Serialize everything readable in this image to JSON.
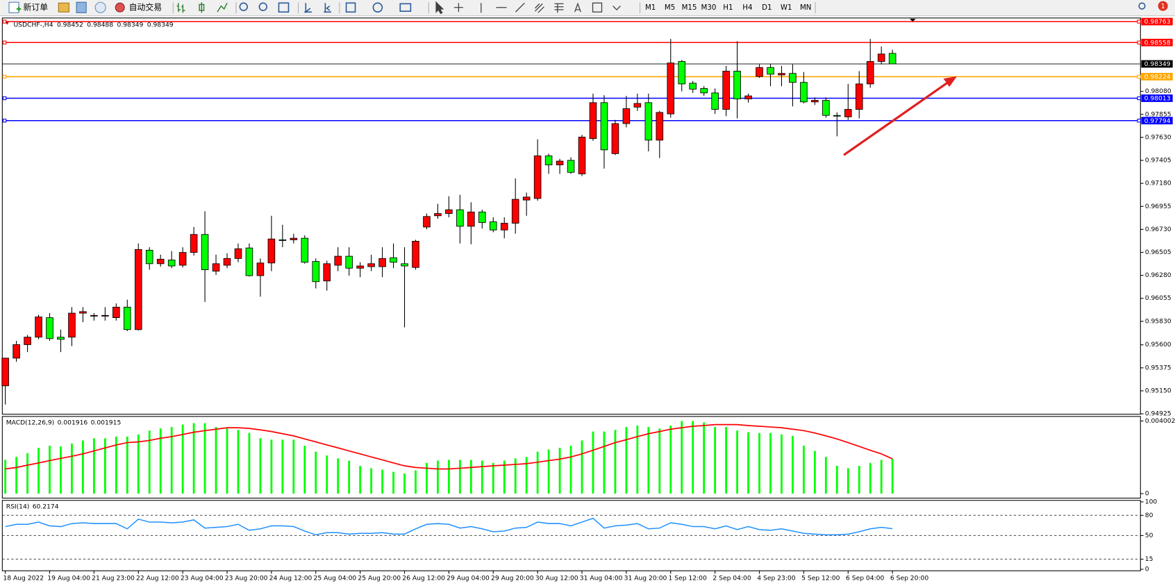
{
  "toolbar": {
    "new_order": "新订单",
    "auto_trading": "自动交易",
    "timeframes": [
      "M1",
      "M5",
      "M15",
      "M30",
      "H1",
      "H4",
      "D1",
      "W1",
      "MN"
    ],
    "notification_count": 1
  },
  "chart_data": [
    {
      "type": "candlestick",
      "symbol": "USDCHF-,H4",
      "categories": [
        "18 Aug 2022",
        null,
        null,
        null,
        "19 Aug 04:00",
        null,
        null,
        null,
        "21 Aug 23:00",
        null,
        null,
        null,
        "22 Aug 12:00",
        null,
        null,
        null,
        "23 Aug 04:00",
        null,
        null,
        null,
        "23 Aug 20:00",
        null,
        null,
        null,
        "24 Aug 12:00",
        null,
        null,
        null,
        "25 Aug 04:00",
        null,
        null,
        null,
        "25 Aug 20:00",
        null,
        null,
        null,
        "26 Aug 12:00",
        null,
        null,
        null,
        "29 Aug 04:00",
        null,
        null,
        null,
        "29 Aug 20:00",
        null,
        null,
        null,
        "30 Aug 12:00",
        null,
        null,
        null,
        "31 Aug 04:00",
        null,
        null,
        null,
        "31 Aug 20:00",
        null,
        null,
        null,
        "1 Sep 12:00",
        null,
        null,
        null,
        "2 Sep 04:00",
        null,
        null,
        null,
        "4 Sep 23:00",
        null,
        null,
        null,
        "5 Sep 12:00",
        null,
        null,
        null,
        "6 Sep 04:00",
        null,
        null,
        null,
        "6 Sep 20:00"
      ],
      "open": [
        0.95199,
        0.9547,
        0.95602,
        0.95675,
        0.95866,
        0.95675,
        0.95675,
        0.9591,
        0.95881,
        0.95881,
        0.95866,
        0.95969,
        0.95749,
        0.96526,
        0.96394,
        0.9643,
        0.96379,
        0.96504,
        0.9668,
        0.96321,
        0.96379,
        0.96445,
        0.96548,
        0.96277,
        0.96401,
        0.96628,
        0.96628,
        0.96643,
        0.96416,
        0.96225,
        0.96379,
        0.96467,
        0.9635,
        0.96365,
        0.96365,
        0.96452,
        0.96394,
        0.96357,
        0.96753,
        0.96863,
        0.96885,
        0.96922,
        0.9676,
        0.969,
        0.96804,
        0.96724,
        0.9679,
        0.97017,
        0.97032,
        0.97449,
        0.97361,
        0.97405,
        0.97273,
        0.97618,
        0.9797,
        0.97471,
        0.97765,
        0.97926,
        0.9797,
        0.97603,
        0.9786,
        0.98373,
        0.9816,
        0.98109,
        0.98065,
        0.97904,
        0.98278,
        0.98006,
        0.98226,
        0.98314,
        0.98241,
        0.98256,
        0.98168,
        0.97977,
        0.97992,
        0.97845,
        0.97831,
        0.97904,
        0.98153,
        0.98373,
        0.98452
      ],
      "high": [
        0.9547,
        0.95639,
        0.95697,
        0.95895,
        0.9591,
        0.95749,
        0.95969,
        0.95969,
        0.9591,
        0.95969,
        0.96005,
        0.96042,
        0.96592,
        0.96555,
        0.96482,
        0.96518,
        0.96555,
        0.96753,
        0.96907,
        0.96482,
        0.96496,
        0.96592,
        0.96592,
        0.96445,
        0.96863,
        0.96775,
        0.96687,
        0.96672,
        0.96445,
        0.96423,
        0.96555,
        0.96555,
        0.96408,
        0.96482,
        0.96555,
        0.96592,
        0.96555,
        0.96628,
        0.96885,
        0.9698,
        0.97054,
        0.97068,
        0.96995,
        0.96922,
        0.96848,
        0.96848,
        0.97229,
        0.9709,
        0.97611,
        0.97471,
        0.9742,
        0.97435,
        0.97655,
        0.98058,
        0.98043,
        0.97801,
        0.98036,
        0.98058,
        0.98058,
        0.97889,
        0.98593,
        0.98388,
        0.98182,
        0.98131,
        0.98109,
        0.98329,
        0.98571,
        0.98058,
        0.98344,
        0.98351,
        0.98329,
        0.98344,
        0.9827,
        0.98021,
        0.98021,
        0.97874,
        0.98153,
        0.98278,
        0.98593,
        0.9852,
        0.98488
      ],
      "low": [
        0.95016,
        0.95434,
        0.95529,
        0.95654,
        0.95639,
        0.95529,
        0.95588,
        0.95822,
        0.95837,
        0.95837,
        0.95837,
        0.95734,
        0.95741,
        0.96335,
        0.96365,
        0.9635,
        0.96357,
        0.96474,
        0.9602,
        0.96284,
        0.9635,
        0.96408,
        0.96269,
        0.96071,
        0.96321,
        0.96555,
        0.96592,
        0.96394,
        0.96152,
        0.9613,
        0.96321,
        0.96277,
        0.96262,
        0.96321,
        0.96262,
        0.9635,
        0.95771,
        0.96335,
        0.96731,
        0.96834,
        0.96848,
        0.96592,
        0.96584,
        0.96738,
        0.96702,
        0.96643,
        0.96687,
        0.96863,
        0.9701,
        0.97273,
        0.97273,
        0.97273,
        0.97251,
        0.97596,
        0.97325,
        0.97457,
        0.97728,
        0.97889,
        0.97493,
        0.97427,
        0.97823,
        0.9808,
        0.98065,
        0.98036,
        0.9786,
        0.97838,
        0.97816,
        0.9797,
        0.98212,
        0.98131,
        0.98131,
        0.97933,
        0.97962,
        0.97948,
        0.97823,
        0.9764,
        0.97801,
        0.97816,
        0.98116,
        0.98344,
        0.98349
      ],
      "close": [
        0.9547,
        0.95602,
        0.95675,
        0.95873,
        0.95661,
        0.95654,
        0.9591,
        0.95925,
        0.95888,
        0.95888,
        0.95969,
        0.95749,
        0.96533,
        0.96394,
        0.96438,
        0.96372,
        0.96504,
        0.9668,
        0.96335,
        0.96394,
        0.96445,
        0.9654,
        0.96277,
        0.96401,
        0.96636,
        0.96621,
        0.96643,
        0.96408,
        0.96218,
        0.96394,
        0.96467,
        0.9635,
        0.96372,
        0.96394,
        0.96445,
        0.96408,
        0.96372,
        0.96614,
        0.96856,
        0.96885,
        0.96922,
        0.9676,
        0.969,
        0.96797,
        0.96724,
        0.9679,
        0.97024,
        0.97046,
        0.97449,
        0.97361,
        0.97398,
        0.97288,
        0.97633,
        0.9797,
        0.97508,
        0.97765,
        0.97911,
        0.97962,
        0.97603,
        0.97874,
        0.98358,
        0.98153,
        0.98102,
        0.98065,
        0.97904,
        0.98278,
        0.98006,
        0.98036,
        0.98314,
        0.98248,
        0.98256,
        0.98168,
        0.97977,
        0.97992,
        0.97845,
        0.97838,
        0.97904,
        0.98153,
        0.98373,
        0.98446,
        0.98349
      ],
      "up_color": "#ff0000",
      "down_color": "#00ff00",
      "ylim": [
        0.94921,
        0.98791
      ],
      "yticks": [
        {
          "value": 0.9808,
          "label": "0.98080"
        },
        0.97855,
        {
          "value": 0.9763,
          "label": "0.97630"
        },
        0.97405,
        {
          "value": 0.9718,
          "label": "0.97180"
        },
        0.96955,
        {
          "value": 0.9673,
          "label": "0.96730"
        },
        0.96505,
        {
          "value": 0.9628,
          "label": "0.96280"
        },
        0.96055,
        {
          "value": 0.9583,
          "label": "0.95830"
        },
        {
          "value": 0.956,
          "label": "0.95600"
        },
        0.95375,
        {
          "value": 0.9515,
          "label": "0.95150"
        },
        0.94925
      ],
      "levels": [
        {
          "value": 0.98763,
          "color": "#ff0000"
        },
        {
          "value": 0.98558,
          "color": "#ff0000"
        },
        {
          "value": 0.98224,
          "color": "#ffa500"
        },
        {
          "value": 0.98013,
          "color": "#0000ff"
        },
        {
          "value": 0.97794,
          "color": "#0000ff"
        }
      ]
    },
    {
      "type": "macd",
      "title": "MACD(12,26,9)",
      "ylim": [
        0,
        0.004002
      ],
      "yticks": [
        0.004002,
        0
      ],
      "series": [
        {
          "color": "#00ff00",
          "values": [
            0.00186,
            0.00202,
            0.00223,
            0.00252,
            0.00264,
            0.0026,
            0.00276,
            0.00293,
            0.00305,
            0.00305,
            0.00314,
            0.00314,
            0.00326,
            0.00347,
            0.00359,
            0.00367,
            0.0038,
            0.00388,
            0.00388,
            0.00367,
            0.00359,
            0.00351,
            0.00334,
            0.00305,
            0.00297,
            0.00297,
            0.00297,
            0.00264,
            0.00231,
            0.0021,
            0.00194,
            0.00182,
            0.00153,
            0.0014,
            0.00132,
            0.0012,
            0.00111,
            0.00128,
            0.00169,
            0.00182,
            0.00186,
            0.00186,
            0.00186,
            0.00182,
            0.00169,
            0.00182,
            0.00194,
            0.00202,
            0.00231,
            0.00243,
            0.00252,
            0.00264,
            0.00293,
            0.00342,
            0.00342,
            0.00351,
            0.00367,
            0.00375,
            0.00367,
            0.00359,
            0.00375,
            0.004,
            0.004,
            0.00392,
            0.00367,
            0.00367,
            0.00347,
            0.00338,
            0.00334,
            0.00334,
            0.00326,
            0.00318,
            0.00264,
            0.00235,
            0.00202,
            0.00153,
            0.0014,
            0.00153,
            0.00169,
            0.00186,
            0.001916
          ]
        },
        {
          "color": "#ff0000",
          "values": [
            0.00136,
            0.00144,
            0.00157,
            0.00169,
            0.00182,
            0.00194,
            0.00206,
            0.00219,
            0.00235,
            0.00252,
            0.00268,
            0.00281,
            0.00285,
            0.00293,
            0.00305,
            0.00314,
            0.00326,
            0.00338,
            0.00347,
            0.00355,
            0.00363,
            0.00363,
            0.00359,
            0.00351,
            0.00342,
            0.0033,
            0.00318,
            0.00301,
            0.00285,
            0.00268,
            0.00252,
            0.00235,
            0.00219,
            0.00202,
            0.00186,
            0.00169,
            0.00153,
            0.00144,
            0.0014,
            0.00136,
            0.00136,
            0.0014,
            0.00144,
            0.00149,
            0.00153,
            0.00157,
            0.00161,
            0.00165,
            0.00173,
            0.00182,
            0.0019,
            0.00202,
            0.00219,
            0.00239,
            0.0026,
            0.00281,
            0.00297,
            0.00314,
            0.0033,
            0.00342,
            0.00355,
            0.00363,
            0.00371,
            0.00375,
            0.0038,
            0.0038,
            0.0038,
            0.00375,
            0.00371,
            0.00367,
            0.00363,
            0.00355,
            0.00347,
            0.00334,
            0.00318,
            0.00301,
            0.00281,
            0.0026,
            0.00239,
            0.00219,
            0.001915
          ]
        }
      ]
    },
    {
      "type": "rsi",
      "title": "RSI(14)",
      "ylim": [
        0,
        100
      ],
      "yticks": [
        100,
        80,
        50,
        15,
        0
      ],
      "color": "#1e90ff",
      "values": [
        63.3,
        66.7,
        66.7,
        70.0,
        64.4,
        63.3,
        67.8,
        68.9,
        67.8,
        67.8,
        67.8,
        60.0,
        74.4,
        70.0,
        70.0,
        68.9,
        70.0,
        73.3,
        61.1,
        62.2,
        63.3,
        66.7,
        57.8,
        60.0,
        64.4,
        64.4,
        63.3,
        56.7,
        51.1,
        54.4,
        54.4,
        52.2,
        53.3,
        53.3,
        54.4,
        52.2,
        52.2,
        60.0,
        66.7,
        67.8,
        66.7,
        61.1,
        63.3,
        60.0,
        55.6,
        56.7,
        61.1,
        62.2,
        70.0,
        67.8,
        67.8,
        64.4,
        70.0,
        75.6,
        61.1,
        64.4,
        65.6,
        67.8,
        60.0,
        61.1,
        68.9,
        66.7,
        63.3,
        63.3,
        60.0,
        64.4,
        58.9,
        63.3,
        58.9,
        57.8,
        60.0,
        56.7,
        53.3,
        52.2,
        51.1,
        51.1,
        52.2,
        55.6,
        60.0,
        62.2,
        60.2174
      ]
    }
  ]
}
